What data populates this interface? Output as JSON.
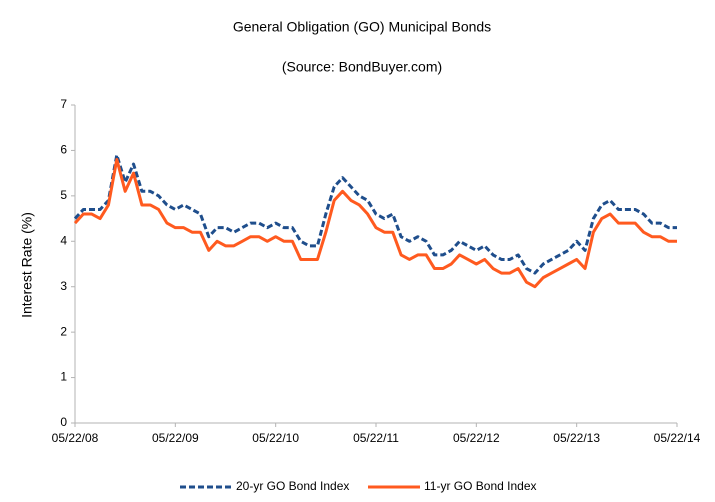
{
  "chart_data": {
    "type": "line",
    "title": "General Obligation (GO) Municipal Bonds",
    "subtitle": "(Source: BondBuyer.com)",
    "y_label": "Interest Rate (%)",
    "categories": [
      "05/22/08",
      null,
      null,
      null,
      null,
      null,
      null,
      null,
      null,
      null,
      null,
      null,
      "05/22/09",
      null,
      null,
      null,
      null,
      null,
      null,
      null,
      null,
      null,
      null,
      null,
      "05/22/10",
      null,
      null,
      null,
      null,
      null,
      null,
      null,
      null,
      null,
      null,
      null,
      "05/22/11",
      null,
      null,
      null,
      null,
      null,
      null,
      null,
      null,
      null,
      null,
      null,
      "05/22/12",
      null,
      null,
      null,
      null,
      null,
      null,
      null,
      null,
      null,
      null,
      null,
      "05/22/13",
      null,
      null,
      null,
      null,
      null,
      null,
      null,
      null,
      null,
      null,
      null,
      "05/22/14"
    ],
    "series": [
      {
        "name": "20-yr GO Bond Index",
        "color": "#1f4e8c",
        "dashed": true,
        "values": [
          4.5,
          4.7,
          4.7,
          4.7,
          4.9,
          5.9,
          5.3,
          5.7,
          5.1,
          5.1,
          5.0,
          4.8,
          4.7,
          4.8,
          4.7,
          4.6,
          4.1,
          4.3,
          4.3,
          4.2,
          4.3,
          4.4,
          4.4,
          4.3,
          4.4,
          4.3,
          4.3,
          4.0,
          3.9,
          3.9,
          4.6,
          5.2,
          5.4,
          5.2,
          5.0,
          4.9,
          4.6,
          4.5,
          4.6,
          4.1,
          4.0,
          4.1,
          4.0,
          3.7,
          3.7,
          3.8,
          4.0,
          3.9,
          3.8,
          3.9,
          3.7,
          3.6,
          3.6,
          3.7,
          3.4,
          3.3,
          3.5,
          3.6,
          3.7,
          3.8,
          4.0,
          3.8,
          4.5,
          4.8,
          4.9,
          4.7,
          4.7,
          4.7,
          4.6,
          4.4,
          4.4,
          4.3,
          4.3
        ]
      },
      {
        "name": "11-yr GO Bond Index",
        "color": "#ff5a1f",
        "dashed": false,
        "values": [
          4.4,
          4.6,
          4.6,
          4.5,
          4.8,
          5.8,
          5.1,
          5.5,
          4.8,
          4.8,
          4.7,
          4.4,
          4.3,
          4.3,
          4.2,
          4.2,
          3.8,
          4.0,
          3.9,
          3.9,
          4.0,
          4.1,
          4.1,
          4.0,
          4.1,
          4.0,
          4.0,
          3.6,
          3.6,
          3.6,
          4.2,
          4.9,
          5.1,
          4.9,
          4.8,
          4.6,
          4.3,
          4.2,
          4.2,
          3.7,
          3.6,
          3.7,
          3.7,
          3.4,
          3.4,
          3.5,
          3.7,
          3.6,
          3.5,
          3.6,
          3.4,
          3.3,
          3.3,
          3.4,
          3.1,
          3.0,
          3.2,
          3.3,
          3.4,
          3.5,
          3.6,
          3.4,
          4.2,
          4.5,
          4.6,
          4.4,
          4.4,
          4.4,
          4.2,
          4.1,
          4.1,
          4.0,
          4.0
        ]
      }
    ],
    "ylim": [
      0,
      7
    ],
    "yticks": [
      0,
      1,
      2,
      3,
      4,
      5,
      6,
      7
    ],
    "grid": false,
    "legend": "bottom"
  }
}
